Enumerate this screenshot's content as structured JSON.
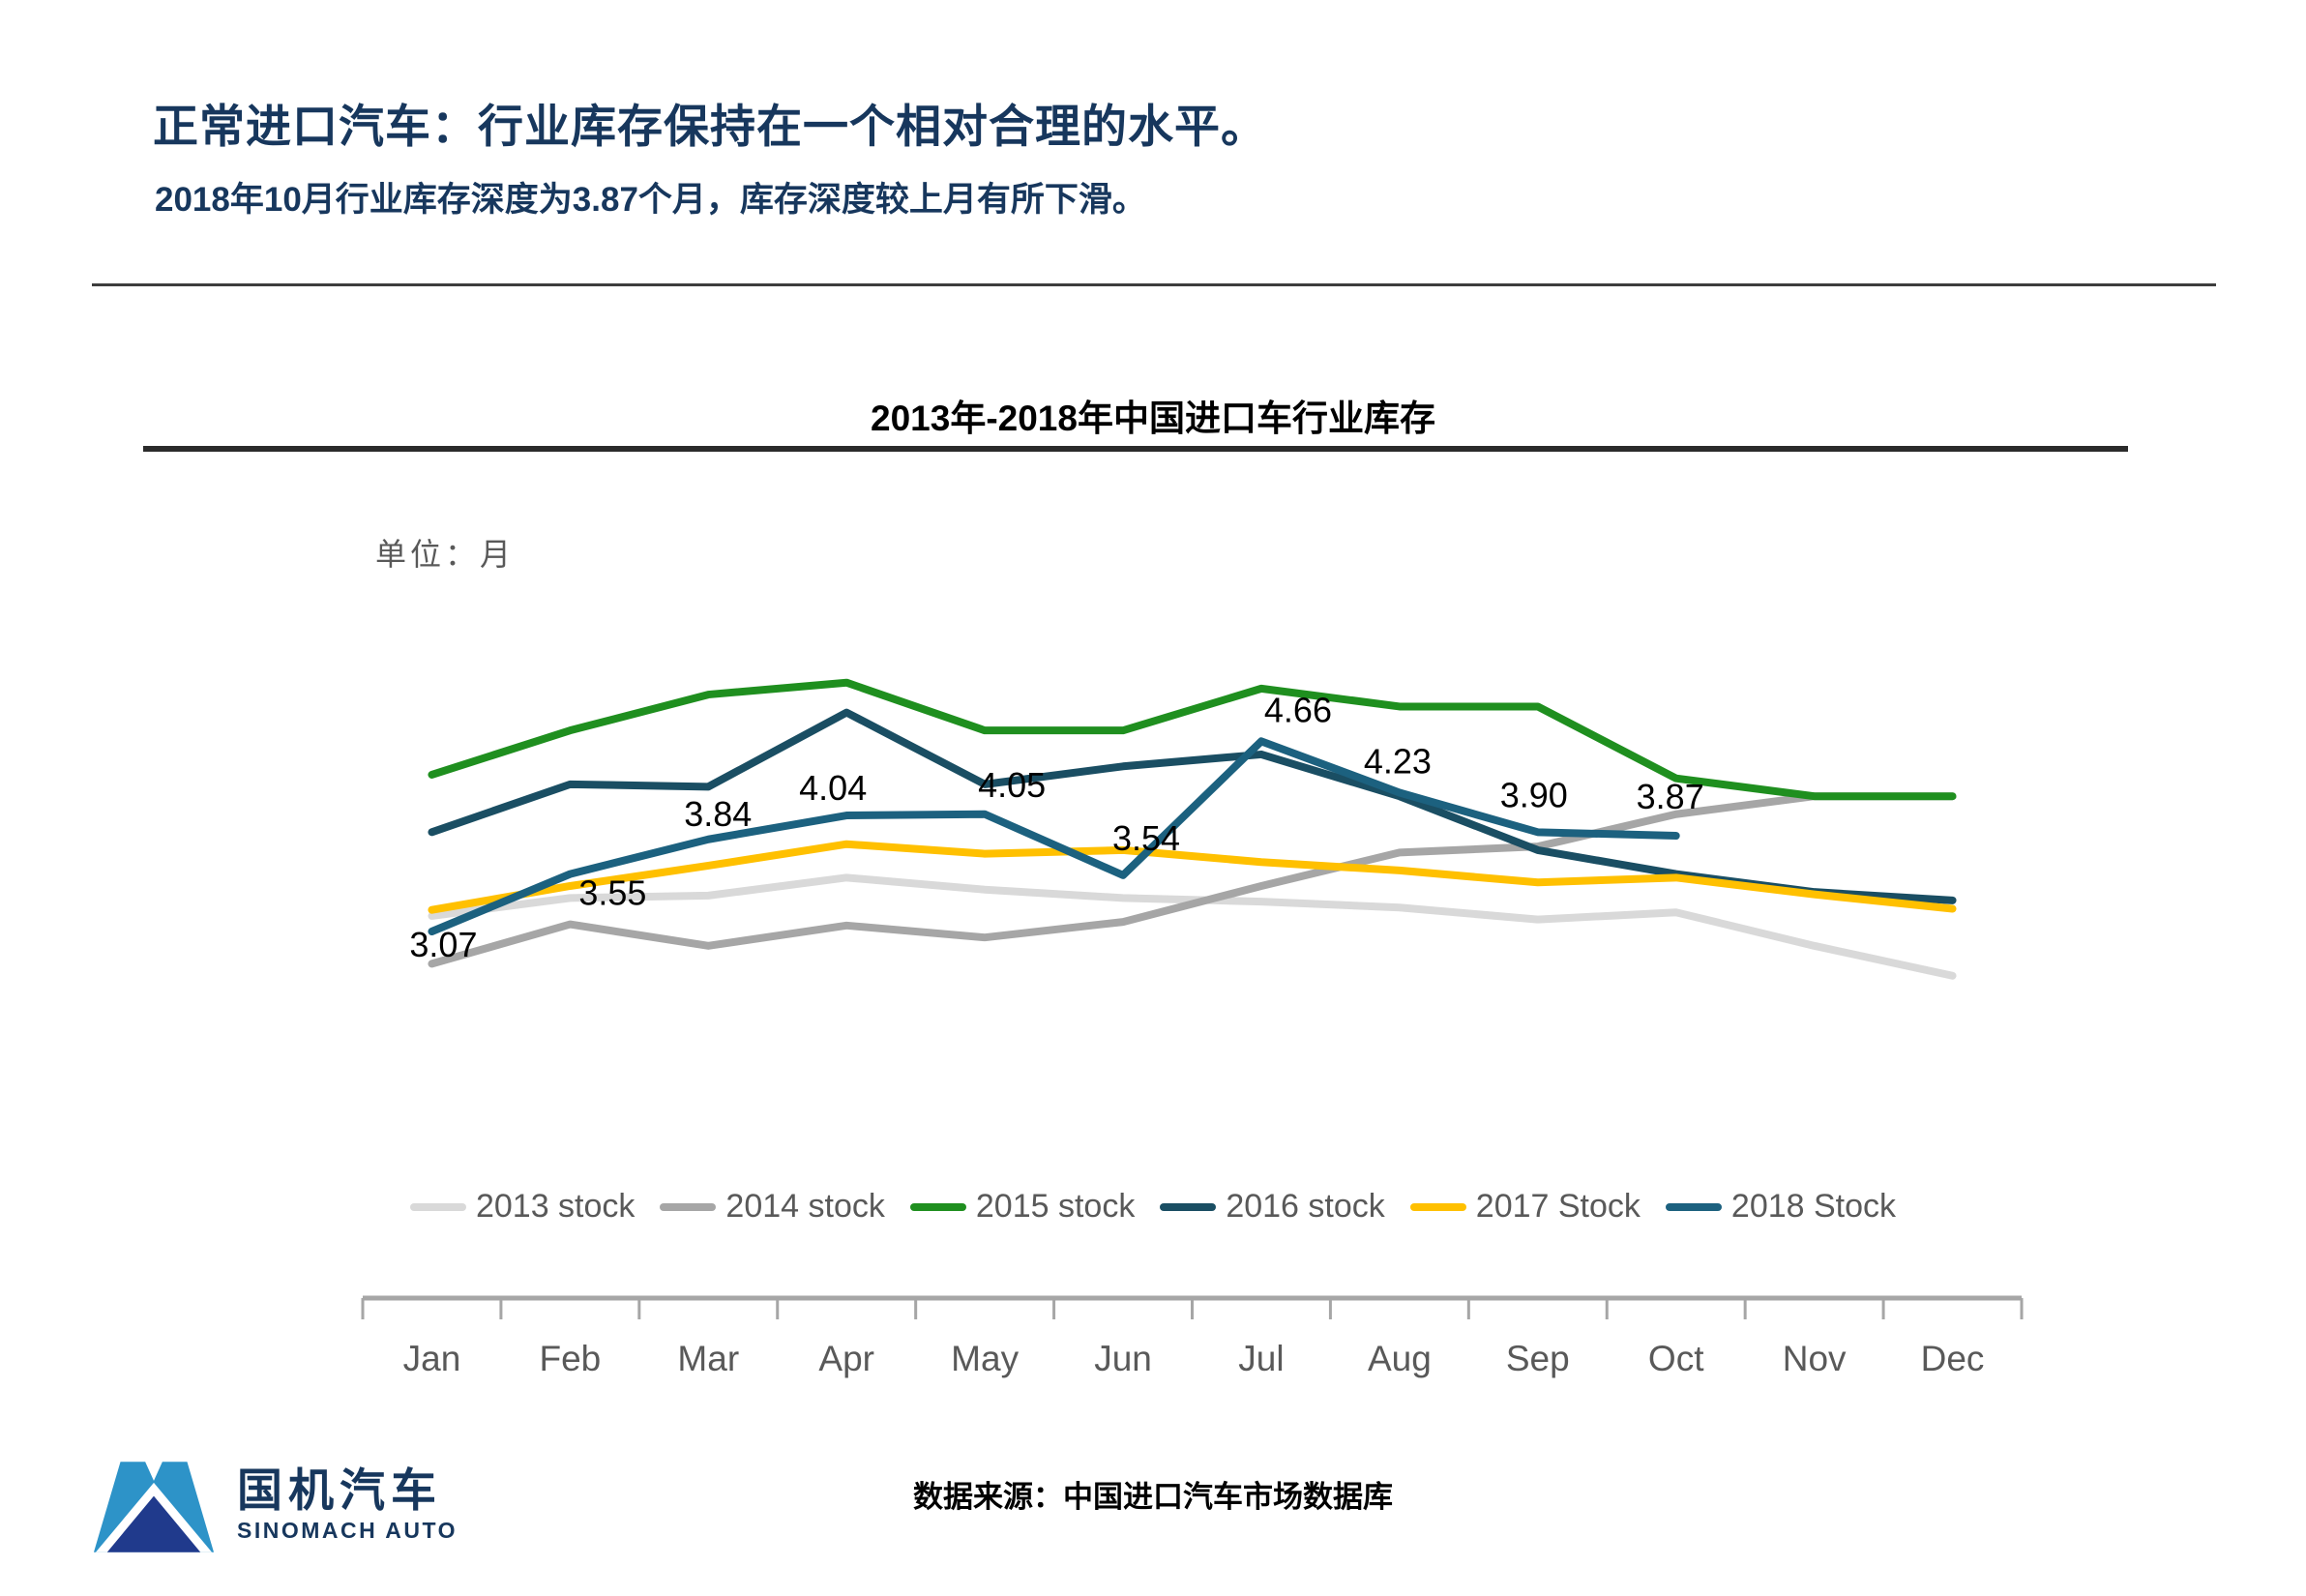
{
  "page": {
    "title": "正常进口汽车：行业库存保持在一个相对合理的水平。",
    "subtitle": "2018年10月行业库存深度为3.87个月，库存深度较上月有所下滑。",
    "source": "数据来源：中国进口汽车市场数据库"
  },
  "logo": {
    "cn": "国机汽车",
    "en": "SINOMACH AUTO",
    "icon": "mountain-logo-icon",
    "icon_colors": {
      "slope_blue": "#2D93C8",
      "front_navy": "#203A8C"
    }
  },
  "colors": {
    "title_blue": "#17375D",
    "axis_gray": "#A6A6A6",
    "label_gray": "#595959",
    "data_label_black": "#000000"
  },
  "chart_data": {
    "type": "line",
    "title": "2013年-2018年中国进口车行业库存",
    "unit_label": "单位：月",
    "xlabel": "",
    "ylabel": "单位：月",
    "categories": [
      "Jan",
      "Feb",
      "Mar",
      "Apr",
      "May",
      "Jun",
      "Jul",
      "Aug",
      "Sep",
      "Oct",
      "Nov",
      "Dec"
    ],
    "grid": false,
    "legend_position": "bottom",
    "ylim_visible_data": [
      2.7,
      5.2
    ],
    "series": [
      {
        "name": "2013 stock",
        "color": "#D9D9D9",
        "values": [
          3.2,
          3.35,
          3.37,
          3.52,
          3.42,
          3.35,
          3.32,
          3.27,
          3.17,
          3.23,
          2.95,
          2.7
        ]
      },
      {
        "name": "2014 stock",
        "color": "#A6A6A6",
        "values": [
          2.8,
          3.13,
          2.95,
          3.12,
          3.02,
          3.15,
          3.45,
          3.73,
          3.78,
          4.05,
          4.2,
          4.2
        ]
      },
      {
        "name": "2015 stock",
        "color": "#1F8F1F",
        "values": [
          4.38,
          4.75,
          5.05,
          5.15,
          4.75,
          4.75,
          5.1,
          4.95,
          4.95,
          4.35,
          4.2,
          4.2
        ]
      },
      {
        "name": "2016 stock",
        "color": "#1A4E63",
        "values": [
          3.9,
          4.3,
          4.28,
          4.9,
          4.3,
          4.45,
          4.55,
          4.2,
          3.75,
          3.55,
          3.4,
          3.33
        ]
      },
      {
        "name": "2017 Stock",
        "color": "#FFC000",
        "values": [
          3.25,
          3.45,
          3.62,
          3.8,
          3.72,
          3.75,
          3.65,
          3.58,
          3.48,
          3.52,
          3.38,
          3.26
        ]
      },
      {
        "name": "2018 Stock",
        "color": "#1C617F",
        "labeled": true,
        "values": [
          3.07,
          3.55,
          3.84,
          4.04,
          4.05,
          3.54,
          4.66,
          4.23,
          3.9,
          3.87
        ],
        "data_labels": [
          "3.07",
          "3.55",
          "3.84",
          "4.04",
          "4.05",
          "3.54",
          "4.66",
          "4.23",
          "3.90",
          "3.87"
        ]
      }
    ]
  }
}
